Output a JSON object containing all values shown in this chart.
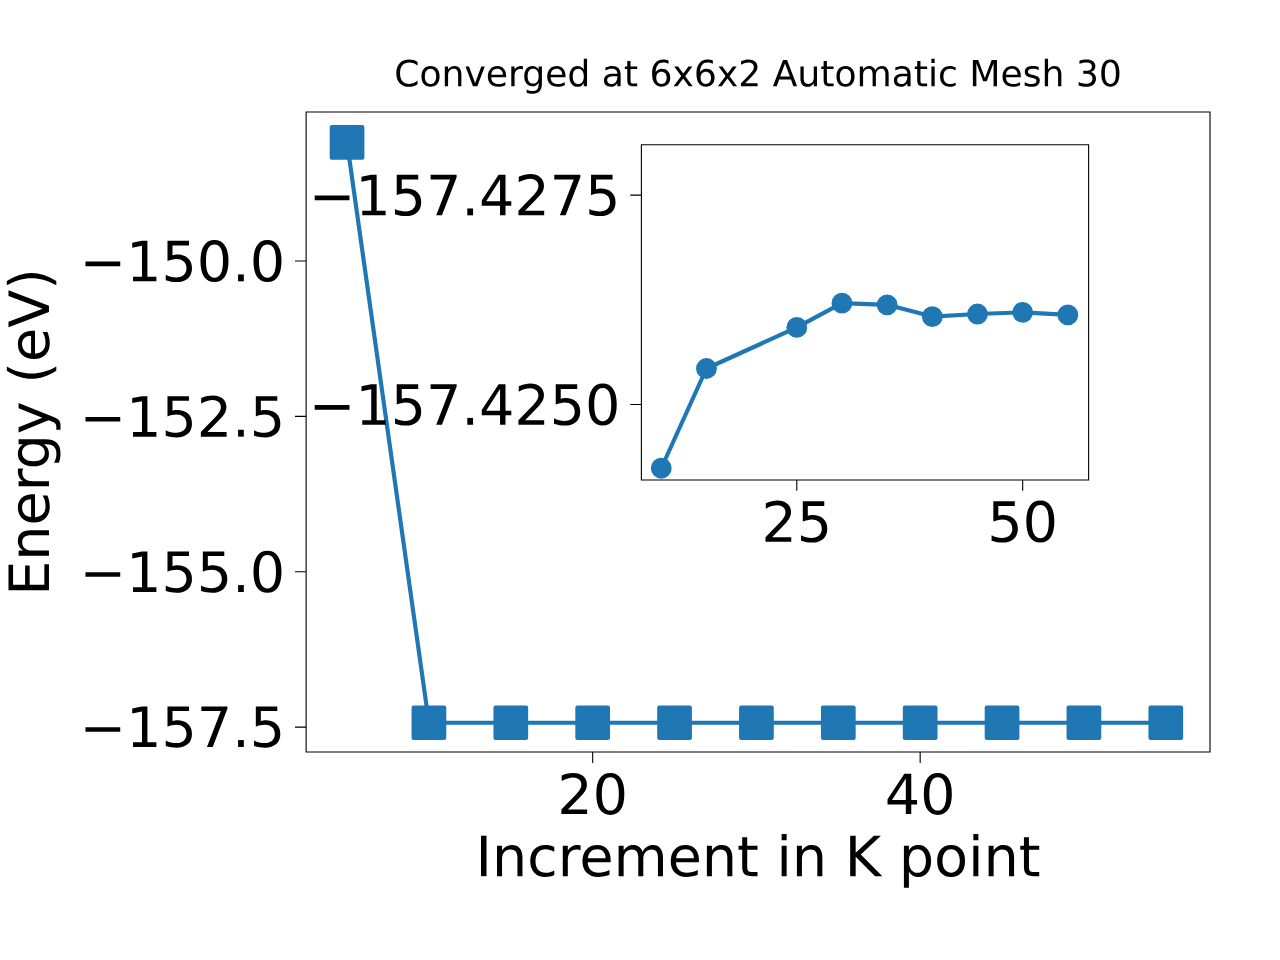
{
  "chart_data": [
    {
      "type": "line",
      "title": "Converged at 6x6x2 Automatic Mesh 30",
      "xlabel": "Increment in K point",
      "ylabel": "Energy (eV)",
      "x": [
        5,
        10,
        15,
        20,
        25,
        30,
        35,
        40,
        45,
        50,
        55
      ],
      "series": [
        {
          "color": "#1f77b4",
          "values": [
            -148.09,
            -157.43,
            -157.43,
            -157.43,
            -157.43,
            -157.43,
            -157.43,
            -157.43,
            -157.43,
            -157.43,
            -157.43
          ]
        }
      ],
      "marker": "square",
      "xlim": [
        2.5,
        57.7
      ],
      "ylim": [
        -157.9,
        -147.6
      ],
      "xticks": [
        20,
        40
      ],
      "yticks": [
        {
          "value": -150.0,
          "label": "−150.0"
        },
        {
          "value": -152.5,
          "label": "−152.5"
        },
        {
          "value": -155.0,
          "label": "−155.0"
        },
        {
          "value": -157.5,
          "label": "−157.5"
        }
      ]
    },
    {
      "type": "line",
      "x": [
        10,
        15,
        25,
        30,
        35,
        40,
        45,
        50,
        55
      ],
      "series": [
        {
          "color": "#1f77b4",
          "values": [
            -157.42424,
            -157.42543,
            -157.42592,
            -157.42621,
            -157.42619,
            -157.42605,
            -157.42608,
            -157.4261,
            -157.42607
          ]
        }
      ],
      "marker": "circle",
      "xlim": [
        7.8,
        57.3
      ],
      "ylim": [
        -157.4241,
        -157.4281
      ],
      "xticks": [
        25,
        50
      ],
      "yticks": [
        {
          "value": -157.4275,
          "label": "−157.4275"
        },
        {
          "value": -157.425,
          "label": "−157.4250"
        }
      ]
    }
  ]
}
